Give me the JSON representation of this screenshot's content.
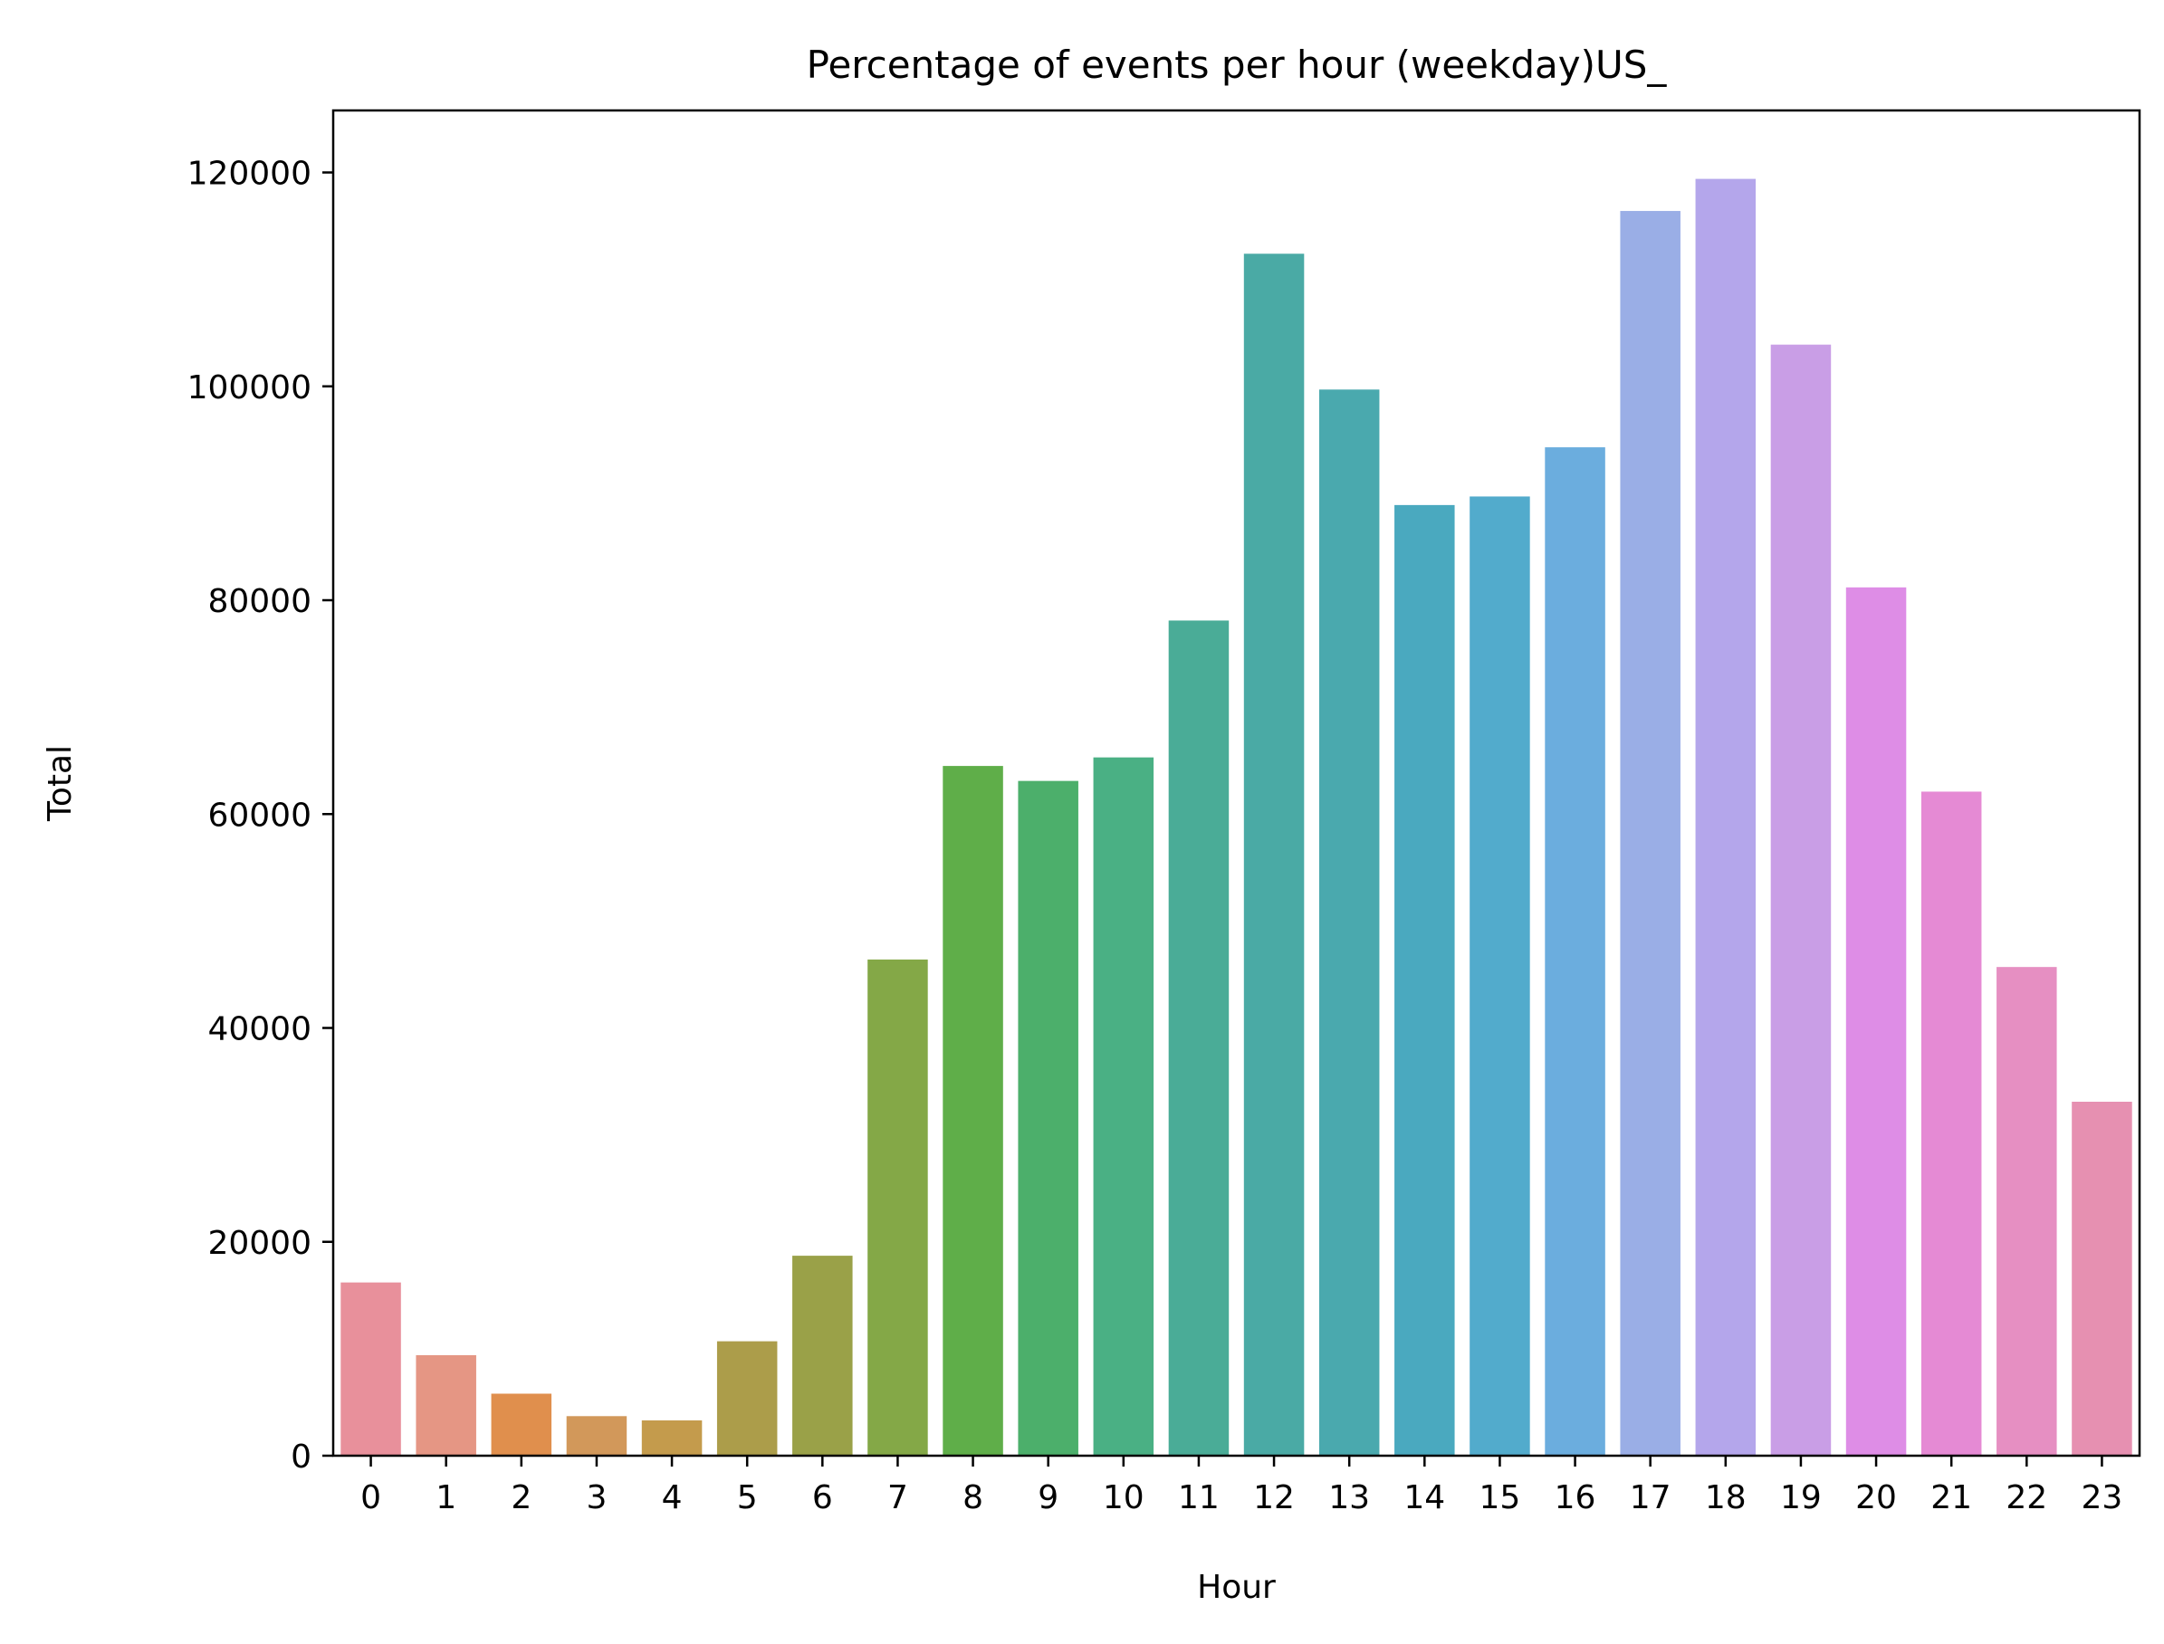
{
  "chart_data": {
    "type": "bar",
    "title": "Percentage of events per hour (weekday)US_",
    "xlabel": "Hour",
    "ylabel": "Total",
    "categories": [
      "0",
      "1",
      "2",
      "3",
      "4",
      "5",
      "6",
      "7",
      "8",
      "9",
      "10",
      "11",
      "12",
      "13",
      "14",
      "15",
      "16",
      "17",
      "18",
      "19",
      "20",
      "21",
      "22",
      "23"
    ],
    "values": [
      16200,
      9400,
      5800,
      3700,
      3300,
      10700,
      18700,
      46400,
      64500,
      63100,
      65300,
      78100,
      112400,
      99700,
      88900,
      89700,
      94300,
      116400,
      119400,
      103900,
      81200,
      62100,
      45700,
      33100
    ],
    "ylim": [
      0,
      125800
    ],
    "yticks": [
      0,
      20000,
      40000,
      60000,
      80000,
      100000,
      120000
    ],
    "ytick_labels": [
      "0",
      "20000",
      "40000",
      "60000",
      "80000",
      "100000",
      "120000"
    ],
    "grid": false,
    "legend": "none",
    "colors": [
      "#e8909b",
      "#e59684",
      "#e08f4d",
      "#d2985a",
      "#c49b4c",
      "#ac9d4a",
      "#9aa148",
      "#84a847",
      "#5fae49",
      "#4caf6b",
      "#4ab084",
      "#4aac97",
      "#4aaaa5",
      "#4aa9ae",
      "#4aa9bf",
      "#52abcc",
      "#6badde",
      "#9aaee6",
      "#b4a6eb",
      "#c99ee6",
      "#de8de6",
      "#e58ad4",
      "#e68fc2",
      "#e690b1"
    ]
  }
}
